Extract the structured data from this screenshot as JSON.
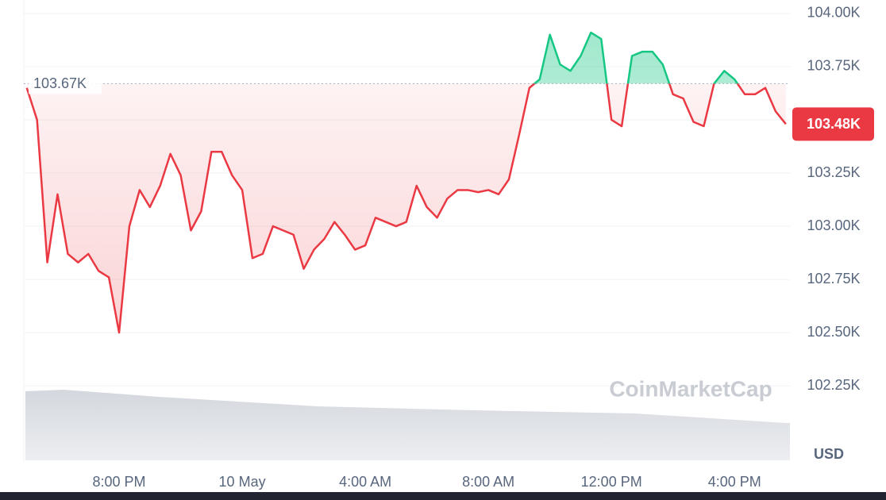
{
  "chart_data": {
    "type": "line",
    "categories": [
      null,
      null,
      null,
      null,
      null,
      null,
      null,
      null,
      null,
      "8:00 PM",
      null,
      null,
      null,
      null,
      null,
      null,
      null,
      null,
      null,
      null,
      null,
      "10 May",
      null,
      null,
      null,
      null,
      null,
      null,
      null,
      null,
      null,
      null,
      null,
      "4:00 AM",
      null,
      null,
      null,
      null,
      null,
      null,
      null,
      null,
      null,
      null,
      null,
      "8:00 AM",
      null,
      null,
      null,
      null,
      null,
      null,
      null,
      null,
      null,
      null,
      null,
      "12:00 PM",
      null,
      null,
      null,
      null,
      null,
      null,
      null,
      null,
      null,
      null,
      null,
      "4:00 PM",
      null,
      null,
      null,
      null,
      null
    ],
    "values": [
      103.65,
      103.5,
      102.83,
      103.15,
      102.87,
      102.83,
      102.87,
      102.79,
      102.76,
      102.5,
      103.0,
      103.17,
      103.09,
      103.19,
      103.34,
      103.24,
      102.98,
      103.07,
      103.35,
      103.35,
      103.24,
      103.17,
      102.85,
      102.87,
      103.0,
      102.98,
      102.96,
      102.8,
      102.89,
      102.94,
      103.02,
      102.96,
      102.89,
      102.91,
      103.04,
      103.02,
      103.0,
      103.02,
      103.19,
      103.09,
      103.04,
      103.13,
      103.17,
      103.17,
      103.16,
      103.17,
      103.15,
      103.22,
      103.43,
      103.65,
      103.69,
      103.9,
      103.76,
      103.73,
      103.8,
      103.91,
      103.88,
      103.5,
      103.47,
      103.8,
      103.82,
      103.82,
      103.76,
      103.62,
      103.6,
      103.49,
      103.47,
      103.67,
      103.73,
      103.69,
      103.62,
      103.62,
      103.65,
      103.54,
      103.48
    ],
    "ylim": [
      101.9,
      104.063
    ],
    "yticks": [
      {
        "value": 104.0,
        "label": "104.00K"
      },
      {
        "value": 103.75,
        "label": "103.75K"
      },
      {
        "value": 103.5,
        "label": "103.50K"
      },
      {
        "value": 103.25,
        "label": "103.25K"
      },
      {
        "value": 103.0,
        "label": "103.00K"
      },
      {
        "value": 102.75,
        "label": "102.75K"
      },
      {
        "value": 102.5,
        "label": "102.50K"
      },
      {
        "value": 102.25,
        "label": "102.25K"
      }
    ],
    "baseline": {
      "value": 103.67,
      "label": "103.67K"
    },
    "current_price": {
      "value": 103.48,
      "label": "103.48K"
    },
    "y_unit": "USD",
    "watermark": "CoinMarketCap",
    "color_up": "#16c784",
    "color_down": "#ea3943",
    "grid": true
  }
}
